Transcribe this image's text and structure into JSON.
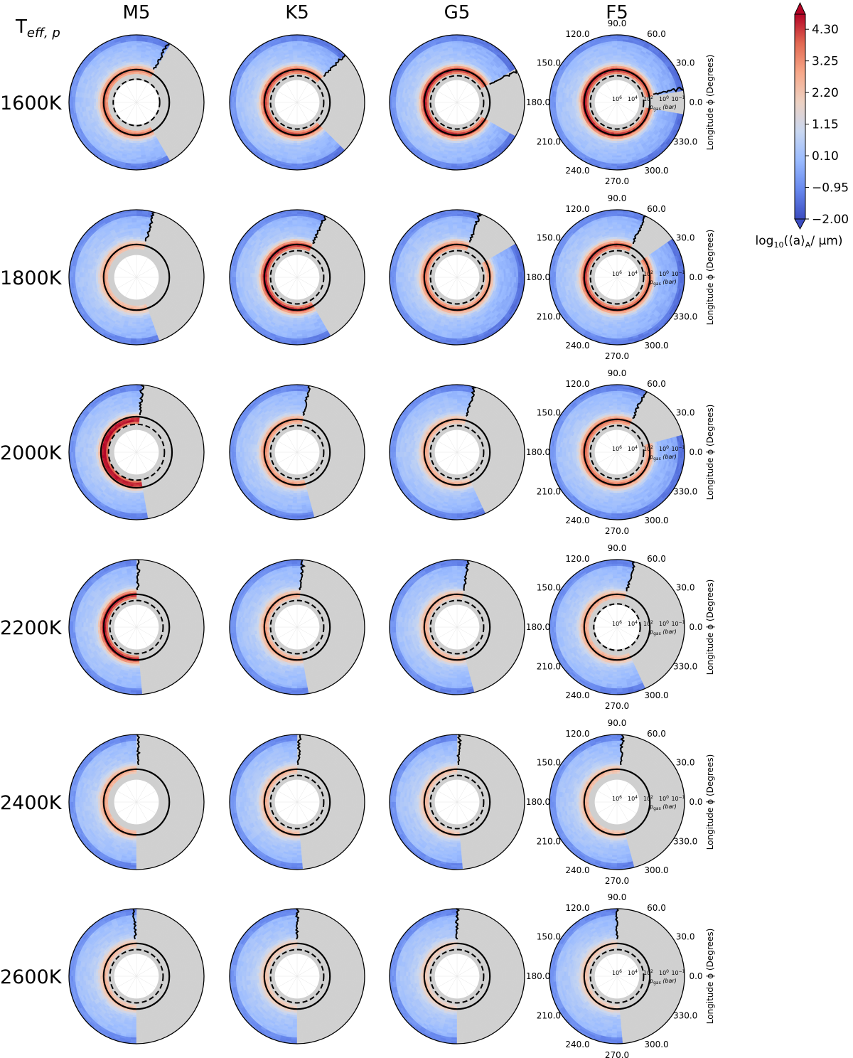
{
  "chart_data": {
    "type": "heatmap",
    "subtype": "polar-contour-grid",
    "row_axis_label": "T",
    "row_axis_label_sub": "eff, p",
    "columns": [
      "M5",
      "K5",
      "G5",
      "F5"
    ],
    "rows": [
      "1600K",
      "1800K",
      "2000K",
      "2200K",
      "2400K",
      "2600K"
    ],
    "angular_axis": {
      "label": "Longitude ϕ (Degrees)",
      "ticks": [
        "0.0",
        "30.0",
        "60.0",
        "90.0",
        "120.0",
        "150.0",
        "180.0",
        "210.0",
        "240.0",
        "270.0",
        "300.0",
        "330.0"
      ],
      "tick_degrees": [
        0,
        30,
        60,
        90,
        120,
        150,
        180,
        210,
        240,
        270,
        300,
        330
      ]
    },
    "radial_axis": {
      "label": "p",
      "label_sub": "gas",
      "label_unit": "(bar)",
      "ticks": [
        "10",
        "10",
        "10",
        "10"
      ],
      "tick_exponents": [
        "6",
        "4",
        "2",
        "0"
      ],
      "edge_tick": "10",
      "edge_tick_exponent": "−1"
    },
    "colorbar": {
      "label": "log",
      "label_sub": "10",
      "label_rest": "(⟨a⟩",
      "label_rest_sub": "A",
      "label_unit": "/ μm)",
      "ticks": [
        "4.30",
        "3.25",
        "2.20",
        "1.15",
        "0.10",
        "−0.95",
        "−2.00"
      ],
      "tick_values": [
        4.3,
        3.25,
        2.2,
        1.15,
        0.1,
        -0.95,
        -2.0
      ],
      "range": [
        -2.0,
        4.8
      ],
      "cmap_stops": [
        "#3b4cc0",
        "#6788ee",
        "#9abbff",
        "#c9d7f0",
        "#edd1c2",
        "#f7a889",
        "#e26952",
        "#b40426"
      ]
    },
    "panel_data": [
      {
        "row": "1600K",
        "col": "M5",
        "band_intensity": 0.72,
        "gray_sector": [
          -62,
          62
        ],
        "solid_ring": 0.36,
        "dashed_ring": 0.26
      },
      {
        "row": "1600K",
        "col": "K5",
        "band_intensity": 0.8,
        "gray_sector": [
          -45,
          45
        ],
        "solid_ring": 0.36,
        "dashed_ring": 0.31
      },
      {
        "row": "1600K",
        "col": "G5",
        "band_intensity": 0.85,
        "gray_sector": [
          -28,
          28
        ],
        "solid_ring": 0.36,
        "dashed_ring": 0.31
      },
      {
        "row": "1600K",
        "col": "F5",
        "band_intensity": 0.85,
        "gray_sector": [
          -12,
          12
        ],
        "solid_ring": 0.36,
        "dashed_ring": 0.31
      },
      {
        "row": "1800K",
        "col": "M5",
        "band_intensity": 0.6,
        "gray_sector": [
          -70,
          75
        ],
        "solid_ring": 0.36,
        "dashed_ring": null
      },
      {
        "row": "1800K",
        "col": "K5",
        "band_intensity": 0.85,
        "gray_sector": [
          -60,
          65
        ],
        "solid_ring": 0.36,
        "dashed_ring": 0.31
      },
      {
        "row": "1800K",
        "col": "G5",
        "band_intensity": 0.72,
        "gray_sector": [
          30,
          70
        ],
        "solid_ring": 0.36,
        "dashed_ring": 0.31
      },
      {
        "row": "1800K",
        "col": "F5",
        "band_intensity": 0.8,
        "gray_sector": [
          35,
          65
        ],
        "solid_ring": 0.36,
        "dashed_ring": 0.31
      },
      {
        "row": "2000K",
        "col": "M5",
        "band_intensity": 0.9,
        "gray_sector": [
          -80,
          85
        ],
        "solid_ring": 0.4,
        "dashed_ring": 0.33
      },
      {
        "row": "2000K",
        "col": "K5",
        "band_intensity": 0.66,
        "gray_sector": [
          -75,
          80
        ],
        "solid_ring": 0.36,
        "dashed_ring": 0.31
      },
      {
        "row": "2000K",
        "col": "G5",
        "band_intensity": 0.6,
        "gray_sector": [
          -65,
          75
        ],
        "solid_ring": 0.36,
        "dashed_ring": 0.31
      },
      {
        "row": "2000K",
        "col": "F5",
        "band_intensity": 0.74,
        "gray_sector": [
          15,
          65
        ],
        "solid_ring": 0.36,
        "dashed_ring": 0.31
      },
      {
        "row": "2200K",
        "col": "M5",
        "band_intensity": 0.86,
        "gray_sector": [
          -85,
          88
        ],
        "solid_ring": 0.36,
        "dashed_ring": 0.31
      },
      {
        "row": "2200K",
        "col": "K5",
        "band_intensity": 0.62,
        "gray_sector": [
          -80,
          85
        ],
        "solid_ring": 0.36,
        "dashed_ring": 0.31
      },
      {
        "row": "2200K",
        "col": "G5",
        "band_intensity": 0.58,
        "gray_sector": [
          -75,
          80
        ],
        "solid_ring": 0.36,
        "dashed_ring": 0.31
      },
      {
        "row": "2200K",
        "col": "F5",
        "band_intensity": 0.62,
        "gray_sector": [
          -65,
          75
        ],
        "solid_ring": 0.36,
        "dashed_ring": 0.26
      },
      {
        "row": "2400K",
        "col": "M5",
        "band_intensity": 0.62,
        "gray_sector": [
          -88,
          88
        ],
        "solid_ring": 0.36,
        "dashed_ring": null
      },
      {
        "row": "2400K",
        "col": "K5",
        "band_intensity": 0.58,
        "gray_sector": [
          -85,
          88
        ],
        "solid_ring": 0.36,
        "dashed_ring": 0.31
      },
      {
        "row": "2400K",
        "col": "G5",
        "band_intensity": 0.55,
        "gray_sector": [
          -85,
          88
        ],
        "solid_ring": 0.36,
        "dashed_ring": 0.31
      },
      {
        "row": "2400K",
        "col": "F5",
        "band_intensity": 0.58,
        "gray_sector": [
          -75,
          85
        ],
        "solid_ring": 0.36,
        "dashed_ring": null
      },
      {
        "row": "2600K",
        "col": "M5",
        "band_intensity": 0.56,
        "gray_sector": [
          -92,
          92
        ],
        "solid_ring": 0.36,
        "dashed_ring": 0.31
      },
      {
        "row": "2600K",
        "col": "K5",
        "band_intensity": 0.52,
        "gray_sector": [
          -88,
          90
        ],
        "solid_ring": 0.36,
        "dashed_ring": 0.31
      },
      {
        "row": "2600K",
        "col": "G5",
        "band_intensity": 0.5,
        "gray_sector": [
          -88,
          90
        ],
        "solid_ring": 0.36,
        "dashed_ring": 0.31
      },
      {
        "row": "2600K",
        "col": "F5",
        "band_intensity": 0.52,
        "gray_sector": [
          -85,
          90
        ],
        "solid_ring": 0.36,
        "dashed_ring": 0.31
      }
    ]
  }
}
